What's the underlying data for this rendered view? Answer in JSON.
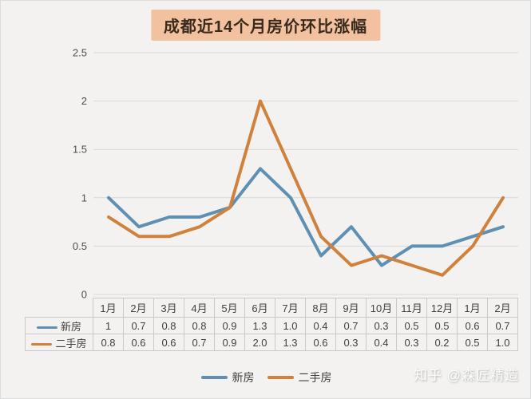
{
  "page": {
    "title": "成都近14个月房价环比涨幅",
    "watermark": "知乎 @森匠精造"
  },
  "colors": {
    "new_house_line": "#5E90B4",
    "second_hand_line": "#D0823C",
    "title_bg": "#F2C2A0",
    "title_text": "#3A2A1C",
    "grid": "#D8D8D8",
    "background": "#F3F2F0",
    "table_border": "#C9C9C9",
    "text": "#404040"
  },
  "chart_data": {
    "type": "line",
    "title": "成都近14个月房价环比涨幅",
    "categories": [
      "1月",
      "2月",
      "3月",
      "4月",
      "5月",
      "6月",
      "7月",
      "8月",
      "9月",
      "10月",
      "11月",
      "12月",
      "1月",
      "2月"
    ],
    "series": [
      {
        "name": "新房",
        "color": "#5E90B4",
        "values": [
          1,
          0.7,
          0.8,
          0.8,
          0.9,
          1.3,
          1.0,
          0.4,
          0.7,
          0.3,
          0.5,
          0.5,
          0.6,
          0.7
        ]
      },
      {
        "name": "二手房",
        "color": "#D0823C",
        "values": [
          0.8,
          0.6,
          0.6,
          0.7,
          0.9,
          2.0,
          1.3,
          0.6,
          0.3,
          0.4,
          0.3,
          0.2,
          0.5,
          1.0
        ]
      }
    ],
    "xlabel": "",
    "ylabel": "",
    "ylim": [
      0,
      2.5
    ],
    "ytick_labels": [
      "0",
      "0.5",
      "1",
      "1.5",
      "2",
      "2.5"
    ],
    "yticks": [
      0,
      0.5,
      1,
      1.5,
      2,
      2.5
    ],
    "grid": true,
    "legend_position": "bottom"
  },
  "table": {
    "months": [
      "1月",
      "2月",
      "3月",
      "4月",
      "5月",
      "6月",
      "7月",
      "8月",
      "9月",
      "10月",
      "11月",
      "12月",
      "1月",
      "2月"
    ],
    "rows": [
      {
        "label": "新房",
        "display_values": [
          "1",
          "0.7",
          "0.8",
          "0.8",
          "0.9",
          "1.3",
          "1.0",
          "0.4",
          "0.7",
          "0.3",
          "0.5",
          "0.5",
          "0.6",
          "0.7"
        ]
      },
      {
        "label": "二手房",
        "display_values": [
          "0.8",
          "0.6",
          "0.6",
          "0.7",
          "0.9",
          "2.0",
          "1.3",
          "0.6",
          "0.3",
          "0.4",
          "0.3",
          "0.2",
          "0.5",
          "1.0"
        ]
      }
    ]
  },
  "legend": {
    "items": [
      {
        "label": "新房",
        "color": "#5E90B4"
      },
      {
        "label": "二手房",
        "color": "#D0823C"
      }
    ]
  }
}
